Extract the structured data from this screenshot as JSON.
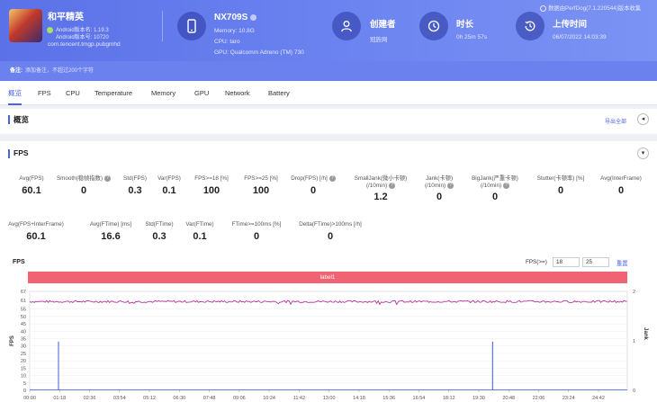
{
  "app": {
    "name": "和平精英",
    "android_version": "Android版本名: 1.19.3",
    "android_code": "Android版本号: 10720",
    "package": "com.tencent.tmgp.pubgmhd"
  },
  "device": {
    "model": "NX709S",
    "memory": "Memory: 10.8G",
    "cpu": "CPU: taro",
    "gpu": "GPU: Qualcomm Adreno (TM) 730"
  },
  "creator": {
    "title": "创建者",
    "value": "冠旌网"
  },
  "duration": {
    "title": "时长",
    "value": "0h 25m 57s"
  },
  "upload": {
    "title": "上传时间",
    "value": "06/07/2022 14:03:39"
  },
  "perfdog_note": "数据由PerfDog(7.1.220544)版本收集",
  "remark": {
    "label": "备注:",
    "placeholder": "添加备注，不超过200个字符"
  },
  "tabs": [
    "概览",
    "FPS",
    "CPU",
    "Temperature",
    "Memory",
    "GPU",
    "Network",
    "Battery"
  ],
  "overview": {
    "title": "概览",
    "export": "导出全部"
  },
  "fps_section": {
    "title": "FPS"
  },
  "stats_row1": [
    {
      "label": "Avg(FPS)",
      "value": "60.1",
      "help": false
    },
    {
      "label": "Smooth(稳帧指数)",
      "value": "0",
      "help": true
    },
    {
      "label": "Std(FPS)",
      "value": "0.3",
      "help": false
    },
    {
      "label": "Var(FPS)",
      "value": "0.1",
      "help": false
    },
    {
      "label": "FPS>=18 [%]",
      "value": "100",
      "help": false
    },
    {
      "label": "FPS>=25 [%]",
      "value": "100",
      "help": false
    },
    {
      "label": "Drop(FPS) [/h]",
      "value": "0",
      "help": true
    },
    {
      "label": "SmallJank(微小卡顿)\n(/10min)",
      "value": "1.2",
      "help": true
    },
    {
      "label": "Jank(卡顿)\n(/10min)",
      "value": "0",
      "help": true
    },
    {
      "label": "BigJank(严重卡顿)\n(/10min)",
      "value": "0",
      "help": true
    },
    {
      "label": "Stutter(卡顿率) [%]",
      "value": "0",
      "help": false
    },
    {
      "label": "Avg(InterFrame)",
      "value": "0",
      "help": false
    }
  ],
  "stats_row2": [
    {
      "label": "Avg(FPS+InterFrame)",
      "value": "60.1",
      "help": false
    },
    {
      "label": "Avg(FTime) [ms]",
      "value": "16.6",
      "help": false
    },
    {
      "label": "Std(FTime)",
      "value": "0.3",
      "help": false
    },
    {
      "label": "Var(FTime)",
      "value": "0.1",
      "help": false
    },
    {
      "label": "FTime>=100ms [%]",
      "value": "0",
      "help": false
    },
    {
      "label": "Delta(FTime)>100ms [/h]",
      "value": "0",
      "help": false
    }
  ],
  "chart_controls": {
    "title": "FPS",
    "fps_label": "FPS(>=)",
    "fps_low": "18",
    "fps_high": "25",
    "reset": "重置",
    "label_bar": "label1"
  },
  "chart_data": {
    "type": "line",
    "title": "FPS",
    "ylabel": "FPS",
    "y2label": "Jank",
    "ylim": [
      0,
      67
    ],
    "y2lim": [
      0,
      2
    ],
    "yticks": [
      0,
      5,
      10,
      15,
      20,
      25,
      30,
      35,
      40,
      45,
      50,
      55,
      61,
      67
    ],
    "y2ticks": [
      0,
      1,
      2
    ],
    "xticks": [
      "00:00",
      "01:18",
      "02:36",
      "03:54",
      "05:12",
      "06:30",
      "07:48",
      "09:06",
      "10:24",
      "11:42",
      "13:00",
      "14:18",
      "15:36",
      "16:54",
      "18:12",
      "19:30",
      "20:48",
      "22:06",
      "23:24",
      "24:42"
    ],
    "duration_s": 1557,
    "series": [
      {
        "name": "FPS",
        "color": "#b5309e",
        "mean": 60.1,
        "min": 58,
        "max": 61.5
      },
      {
        "name": "Jank",
        "color": "#3f5bd8",
        "spikes": [
          {
            "t": 75,
            "value": 33
          },
          {
            "t": 1206,
            "value": 33
          }
        ]
      }
    ],
    "grid": true,
    "legend": "none"
  },
  "colors": {
    "accent": "#4a63e6",
    "header": "#5b71e8",
    "label_bar": "#f06373",
    "fps_line": "#b5309e",
    "jank_line": "#3f5bd8"
  }
}
